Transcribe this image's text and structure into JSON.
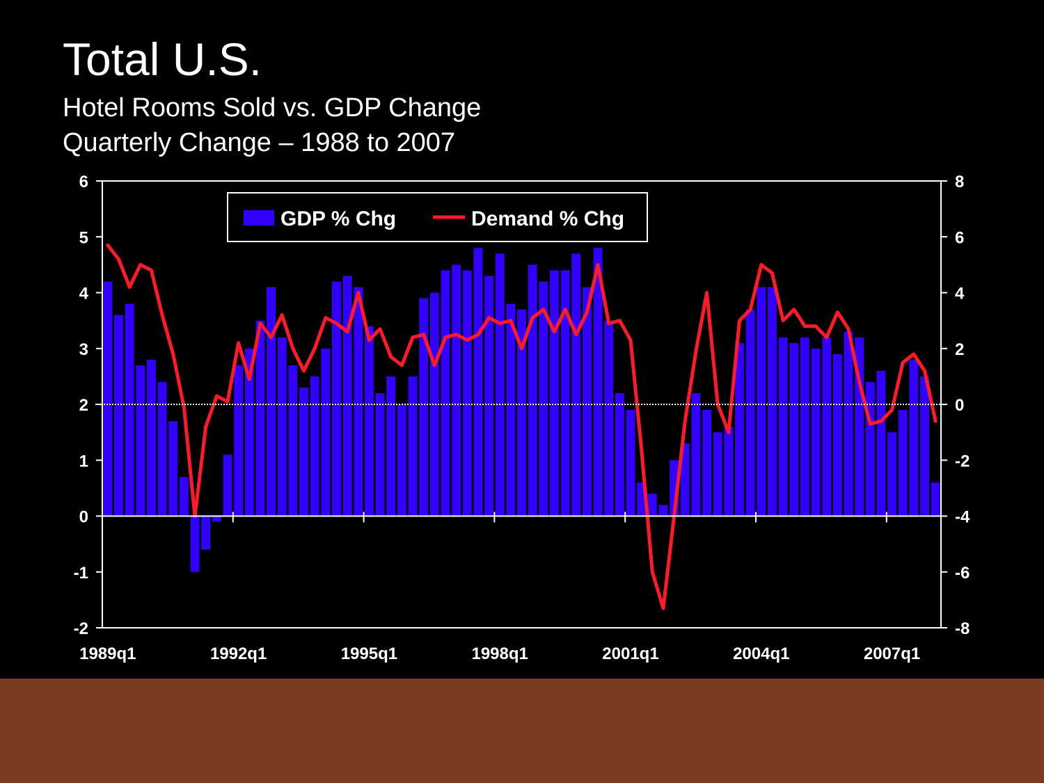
{
  "title": "Total U.S.",
  "subtitle_line1": "Hotel Rooms Sold vs. GDP Change",
  "subtitle_line2": "Quarterly Change – 1988 to 2007",
  "colors": {
    "background": "#000000",
    "bar": "#3300ff",
    "line": "#ff1a2a",
    "axis": "#ffffff",
    "footer_band": "#7a3b20"
  },
  "chart_data": {
    "type": "bar",
    "x_tick_labels": [
      "1989q1",
      "1992q1",
      "1995q1",
      "1998q1",
      "2001q1",
      "2004q1",
      "2007q1"
    ],
    "y_left": {
      "ticks": [
        6,
        5,
        4,
        3,
        2,
        1,
        0,
        -1,
        -2
      ],
      "range": [
        -2,
        6
      ]
    },
    "y_right": {
      "ticks": [
        8,
        6,
        4,
        2,
        0,
        -2,
        -4,
        -6,
        -8
      ],
      "range": [
        -8,
        8
      ]
    },
    "legend": {
      "position": "top-center"
    },
    "series": [
      {
        "name": "GDP % Chg",
        "type": "bar",
        "axis": "left",
        "values": [
          4.2,
          3.6,
          3.8,
          2.7,
          2.8,
          2.4,
          1.7,
          0.7,
          -1.0,
          -0.6,
          -0.1,
          1.1,
          2.7,
          3.0,
          3.5,
          4.1,
          3.2,
          2.7,
          2.3,
          2.5,
          3.0,
          4.2,
          4.3,
          4.1,
          3.4,
          2.2,
          2.5,
          2.0,
          2.5,
          3.9,
          4.0,
          4.4,
          4.5,
          4.4,
          4.8,
          4.3,
          4.7,
          3.8,
          3.7,
          4.5,
          4.2,
          4.4,
          4.4,
          4.7,
          4.1,
          4.8,
          3.5,
          2.2,
          1.9,
          0.6,
          0.4,
          0.2,
          1.0,
          1.3,
          2.2,
          1.9,
          1.5,
          1.6,
          3.1,
          3.7,
          4.1,
          4.1,
          3.2,
          3.1,
          3.2,
          3.0,
          3.2,
          2.9,
          3.3,
          3.2,
          2.4,
          2.6,
          1.5,
          1.9,
          2.8,
          2.5,
          0.6
        ]
      },
      {
        "name": "Demand % Chg",
        "type": "line",
        "axis": "right",
        "values": [
          5.7,
          5.2,
          4.2,
          5.0,
          4.8,
          3.2,
          1.8,
          -0.1,
          -4.0,
          -0.8,
          0.3,
          0.1,
          2.2,
          0.9,
          2.9,
          2.4,
          3.2,
          2.0,
          1.2,
          2.0,
          3.1,
          2.9,
          2.6,
          4.0,
          2.3,
          2.7,
          1.7,
          1.4,
          2.4,
          2.5,
          1.4,
          2.4,
          2.5,
          2.3,
          2.5,
          3.1,
          2.9,
          3.0,
          2.0,
          3.1,
          3.4,
          2.6,
          3.4,
          2.5,
          3.3,
          5.0,
          2.9,
          3.0,
          2.3,
          -1.6,
          -6.0,
          -7.3,
          -4.0,
          -0.6,
          1.9,
          4.0,
          0.0,
          -1.0,
          3.0,
          3.4,
          5.0,
          4.7,
          3.0,
          3.4,
          2.8,
          2.8,
          2.4,
          3.3,
          2.7,
          0.8,
          -0.7,
          -0.6,
          -0.2,
          1.5,
          1.8,
          1.2,
          -0.6
        ]
      }
    ]
  }
}
